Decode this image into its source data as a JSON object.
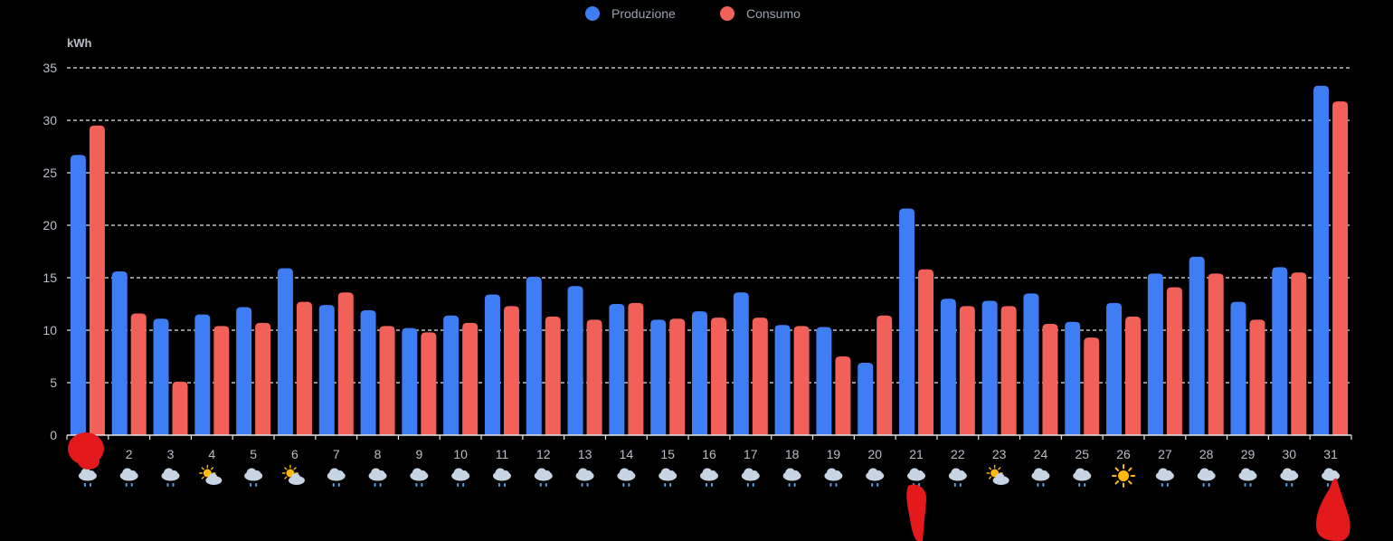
{
  "chart_data": {
    "type": "bar",
    "ylabel": "kWh",
    "ylim": [
      0,
      35
    ],
    "yticks": [
      0,
      5,
      10,
      15,
      20,
      25,
      30,
      35
    ],
    "grid": true,
    "legend_position": "top-center",
    "categories": [
      "1",
      "2",
      "3",
      "4",
      "5",
      "6",
      "7",
      "8",
      "9",
      "10",
      "11",
      "12",
      "13",
      "14",
      "15",
      "16",
      "17",
      "18",
      "19",
      "20",
      "21",
      "22",
      "23",
      "24",
      "25",
      "26",
      "27",
      "28",
      "29",
      "30",
      "31"
    ],
    "series": [
      {
        "name": "Produzione",
        "color": "#3f7df4",
        "values": [
          26.7,
          15.6,
          11.1,
          11.5,
          12.2,
          15.9,
          12.4,
          11.9,
          10.2,
          11.4,
          13.4,
          15.1,
          14.2,
          12.5,
          11.0,
          11.8,
          13.6,
          10.5,
          10.3,
          6.9,
          21.6,
          13.0,
          12.8,
          13.5,
          10.8,
          12.6,
          15.4,
          17.0,
          12.7,
          16.0,
          33.3
        ]
      },
      {
        "name": "Consumo",
        "color": "#f2605a",
        "values": [
          29.5,
          11.6,
          5.1,
          10.4,
          10.7,
          12.7,
          13.6,
          10.4,
          9.8,
          10.7,
          12.3,
          11.3,
          11.0,
          12.6,
          11.1,
          11.2,
          11.2,
          10.4,
          7.5,
          11.4,
          15.8,
          12.3,
          12.3,
          10.6,
          9.3,
          11.3,
          14.1,
          15.4,
          11.0,
          15.5,
          31.8
        ]
      }
    ],
    "weather_icons": [
      "rain",
      "rain",
      "rain",
      "partly-cloudy",
      "rain",
      "partly-cloudy",
      "rain",
      "rain",
      "rain",
      "rain",
      "rain",
      "rain",
      "rain",
      "rain",
      "rain",
      "rain",
      "rain",
      "rain",
      "rain",
      "rain",
      "rain",
      "rain",
      "partly-cloudy",
      "rain",
      "rain",
      "sunny",
      "rain",
      "rain",
      "rain",
      "rain",
      "rain"
    ]
  }
}
